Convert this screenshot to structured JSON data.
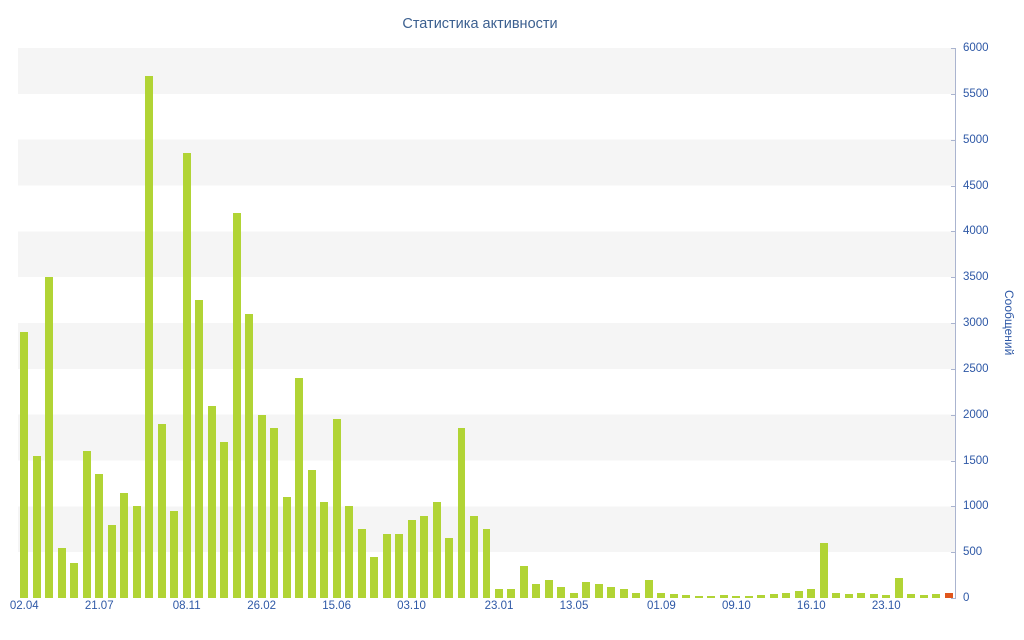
{
  "title": "Статистика активности",
  "colors": {
    "title_text": "#3c6090",
    "axis_text": "#2e58a6",
    "axis_line": "#aab4cf",
    "bar": "#b1d435",
    "highlight_bar": "#e0561c",
    "stripe": "#f5f5f5",
    "background": "#ffffff"
  },
  "chart_data": {
    "type": "bar",
    "title": "Статистика активности",
    "ylabel": "Сообщений",
    "xlabel": "",
    "ylim": [
      0,
      6000
    ],
    "grid": "horizontal-bands",
    "legend": "none",
    "y_ticks": [
      0,
      500,
      1000,
      1500,
      2000,
      2500,
      3000,
      3500,
      4000,
      4500,
      5000,
      5500,
      6000
    ],
    "x_tick_labels": [
      "02.04",
      "21.07",
      "08.11",
      "26.02",
      "15.06",
      "03.10",
      "23.01",
      "13.05",
      "01.09",
      "09.10",
      "16.10",
      "23.10"
    ],
    "x_tick_indices": [
      0,
      6,
      13,
      19,
      25,
      31,
      38,
      44,
      51,
      57,
      63,
      69
    ],
    "values": [
      2900,
      1550,
      3500,
      550,
      380,
      1600,
      1350,
      800,
      1150,
      1000,
      5700,
      1900,
      950,
      4850,
      3250,
      2100,
      1700,
      4200,
      3100,
      2000,
      1850,
      1100,
      2400,
      1400,
      1050,
      1950,
      1000,
      750,
      450,
      700,
      700,
      850,
      900,
      1050,
      650,
      1850,
      900,
      750,
      100,
      100,
      350,
      150,
      200,
      120,
      50,
      180,
      150,
      120,
      100,
      60,
      200,
      60,
      40,
      30,
      20,
      20,
      30,
      20,
      20,
      30,
      40,
      60,
      80,
      100,
      600,
      60,
      40,
      50,
      40,
      30,
      220,
      40,
      30,
      40,
      50
    ],
    "bar_color": "#b1d435",
    "last_bar_color": "#e0561c"
  }
}
